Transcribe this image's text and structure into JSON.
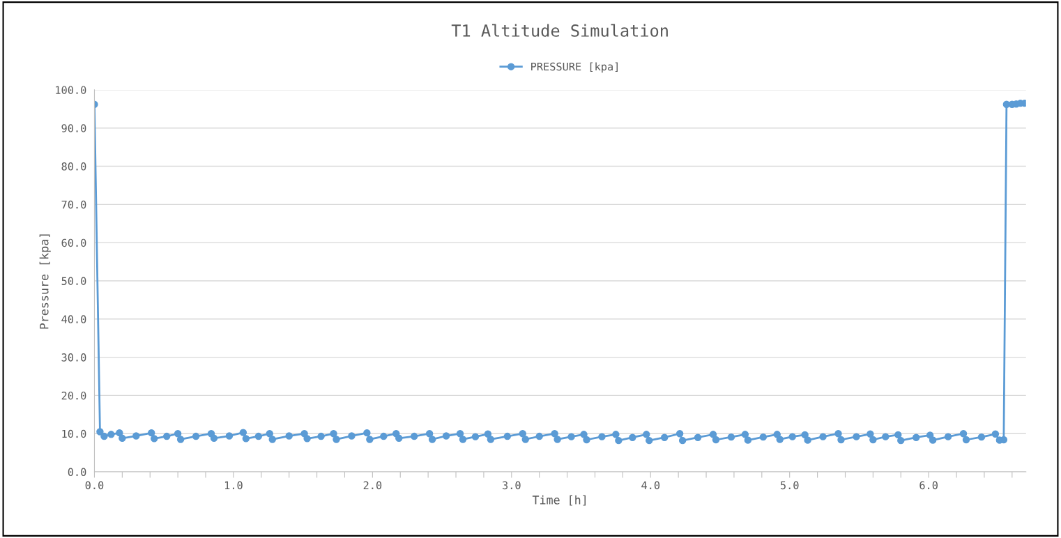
{
  "chart_data": {
    "type": "line",
    "title": "T1 Altitude Simulation",
    "xlabel": "Time [h]",
    "ylabel": "Pressure [kpa]",
    "series": [
      {
        "name": "PRESSURE [kpa]",
        "color": "#5b9bd5",
        "x": [
          0.0,
          0.04,
          0.07,
          0.12,
          0.18,
          0.2,
          0.3,
          0.41,
          0.43,
          0.52,
          0.6,
          0.62,
          0.73,
          0.84,
          0.86,
          0.97,
          1.07,
          1.09,
          1.18,
          1.26,
          1.28,
          1.4,
          1.51,
          1.53,
          1.63,
          1.72,
          1.74,
          1.85,
          1.96,
          1.98,
          2.08,
          2.17,
          2.19,
          2.3,
          2.41,
          2.43,
          2.53,
          2.63,
          2.65,
          2.74,
          2.83,
          2.85,
          2.97,
          3.08,
          3.1,
          3.2,
          3.31,
          3.33,
          3.43,
          3.52,
          3.54,
          3.65,
          3.75,
          3.77,
          3.87,
          3.97,
          3.99,
          4.1,
          4.21,
          4.23,
          4.34,
          4.45,
          4.47,
          4.58,
          4.68,
          4.7,
          4.81,
          4.91,
          4.93,
          5.02,
          5.11,
          5.13,
          5.24,
          5.35,
          5.37,
          5.48,
          5.58,
          5.6,
          5.69,
          5.78,
          5.8,
          5.91,
          6.01,
          6.03,
          6.14,
          6.25,
          6.27,
          6.38,
          6.48,
          6.51,
          6.54,
          6.56,
          6.6,
          6.63,
          6.66,
          6.69
        ],
        "values": [
          96.2,
          10.5,
          9.3,
          9.8,
          10.2,
          8.8,
          9.4,
          10.2,
          8.7,
          9.3,
          10.0,
          8.5,
          9.3,
          10.0,
          8.8,
          9.4,
          10.3,
          8.7,
          9.3,
          10.0,
          8.5,
          9.4,
          10.0,
          8.7,
          9.3,
          10.0,
          8.5,
          9.4,
          10.2,
          8.5,
          9.3,
          10.0,
          8.8,
          9.3,
          10.0,
          8.5,
          9.4,
          10.0,
          8.5,
          9.2,
          9.9,
          8.5,
          9.3,
          10.0,
          8.5,
          9.3,
          10.0,
          8.5,
          9.2,
          9.8,
          8.4,
          9.2,
          9.8,
          8.2,
          9.0,
          9.8,
          8.2,
          9.0,
          10.0,
          8.2,
          9.0,
          9.8,
          8.4,
          9.1,
          9.8,
          8.3,
          9.1,
          9.8,
          8.5,
          9.2,
          9.7,
          8.3,
          9.2,
          10.0,
          8.4,
          9.2,
          9.9,
          8.4,
          9.2,
          9.7,
          8.2,
          9.0,
          9.6,
          8.3,
          9.2,
          10.0,
          8.4,
          9.1,
          9.9,
          8.3,
          8.4,
          96.2,
          96.2,
          96.3,
          96.5,
          96.5
        ]
      }
    ],
    "xlim": [
      0,
      6.7
    ],
    "xticks": [
      {
        "value": 0,
        "label": "0.0"
      },
      {
        "value": 0.2,
        "label": null
      },
      {
        "value": 0.4,
        "label": null
      },
      {
        "value": 0.6,
        "label": null
      },
      {
        "value": 0.8,
        "label": null
      },
      {
        "value": 1,
        "label": "1.0"
      },
      {
        "value": 1.2,
        "label": null
      },
      {
        "value": 1.4,
        "label": null
      },
      {
        "value": 1.6,
        "label": null
      },
      {
        "value": 1.8,
        "label": null
      },
      {
        "value": 2,
        "label": "2.0"
      },
      {
        "value": 2.2,
        "label": null
      },
      {
        "value": 2.4,
        "label": null
      },
      {
        "value": 2.6,
        "label": null
      },
      {
        "value": 2.8,
        "label": null
      },
      {
        "value": 3,
        "label": "3.0"
      },
      {
        "value": 3.2,
        "label": null
      },
      {
        "value": 3.4,
        "label": null
      },
      {
        "value": 3.6,
        "label": null
      },
      {
        "value": 3.8,
        "label": null
      },
      {
        "value": 4,
        "label": "4.0"
      },
      {
        "value": 4.2,
        "label": null
      },
      {
        "value": 4.4,
        "label": null
      },
      {
        "value": 4.6,
        "label": null
      },
      {
        "value": 4.8,
        "label": null
      },
      {
        "value": 5,
        "label": "5.0"
      },
      {
        "value": 5.2,
        "label": null
      },
      {
        "value": 5.4,
        "label": null
      },
      {
        "value": 5.6,
        "label": null
      },
      {
        "value": 5.8,
        "label": null
      },
      {
        "value": 6,
        "label": "6.0"
      },
      {
        "value": 6.2,
        "label": null
      },
      {
        "value": 6.4,
        "label": null
      },
      {
        "value": 6.6,
        "label": null
      }
    ],
    "ylim": [
      0,
      100
    ],
    "yticks": [
      {
        "value": 0,
        "label": "0.0"
      },
      {
        "value": 10,
        "label": "10.0"
      },
      {
        "value": 20,
        "label": "20.0"
      },
      {
        "value": 30,
        "label": "30.0"
      },
      {
        "value": 40,
        "label": "40.0"
      },
      {
        "value": 50,
        "label": "50.0"
      },
      {
        "value": 60,
        "label": "60.0"
      },
      {
        "value": 70,
        "label": "70.0"
      },
      {
        "value": 80,
        "label": "80.0"
      },
      {
        "value": 90,
        "label": "90.0"
      },
      {
        "value": 100,
        "label": "100.0"
      }
    ],
    "grid": "y",
    "legend": "top",
    "marker": "circle",
    "line_style": "solid"
  }
}
